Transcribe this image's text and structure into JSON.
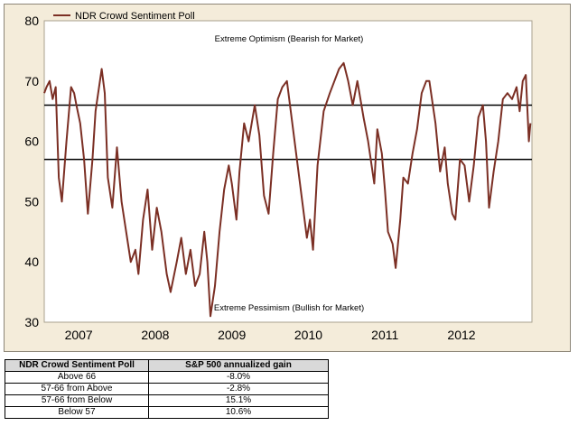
{
  "chart_data": {
    "type": "line",
    "title": "",
    "xlabel": "",
    "ylabel": "",
    "ylim": [
      30,
      80
    ],
    "yticks": [
      30,
      40,
      50,
      60,
      70,
      80
    ],
    "xlim": [
      2006.55,
      2012.92
    ],
    "xtick_labels": [
      {
        "label": "2007",
        "pos": 2007.0
      },
      {
        "label": "2008",
        "pos": 2008.0
      },
      {
        "label": "2009",
        "pos": 2009.0
      },
      {
        "label": "2010",
        "pos": 2010.0
      },
      {
        "label": "2011",
        "pos": 2011.0
      },
      {
        "label": "2012",
        "pos": 2012.0
      }
    ],
    "reference_lines": [
      66,
      57
    ],
    "annotations": [
      {
        "id": "optimism",
        "text": "Extreme Optimism (Bearish for Market)"
      },
      {
        "id": "pessimism",
        "text": "Extreme Pessimism (Bullish for Market)"
      }
    ],
    "legend": {
      "position": "top-left",
      "entries": [
        "NDR Crowd Sentiment Poll"
      ]
    },
    "series": [
      {
        "name": "NDR Crowd Sentiment Poll",
        "color": "#7b2f24",
        "x": [
          2006.55,
          2006.58,
          2006.62,
          2006.66,
          2006.7,
          2006.74,
          2006.78,
          2006.84,
          2006.9,
          2006.94,
          2006.97,
          2007.02,
          2007.07,
          2007.12,
          2007.18,
          2007.22,
          2007.3,
          2007.34,
          2007.38,
          2007.44,
          2007.5,
          2007.56,
          2007.62,
          2007.68,
          2007.74,
          2007.78,
          2007.84,
          2007.9,
          2007.96,
          2008.02,
          2008.08,
          2008.15,
          2008.2,
          2008.28,
          2008.34,
          2008.4,
          2008.46,
          2008.52,
          2008.58,
          2008.64,
          2008.68,
          2008.72,
          2008.78,
          2008.84,
          2008.9,
          2008.96,
          2009.0,
          2009.06,
          2009.1,
          2009.16,
          2009.22,
          2009.3,
          2009.36,
          2009.42,
          2009.48,
          2009.54,
          2009.6,
          2009.66,
          2009.72,
          2009.8,
          2009.86,
          2009.92,
          2009.98,
          2010.02,
          2010.06,
          2010.12,
          2010.2,
          2010.28,
          2010.34,
          2010.4,
          2010.46,
          2010.52,
          2010.58,
          2010.64,
          2010.72,
          2010.78,
          2010.86,
          2010.9,
          2010.96,
          2011.0,
          2011.04,
          2011.1,
          2011.14,
          2011.2,
          2011.24,
          2011.3,
          2011.36,
          2011.42,
          2011.48,
          2011.54,
          2011.58,
          2011.66,
          2011.72,
          2011.78,
          2011.82,
          2011.88,
          2011.92,
          2011.98,
          2012.04,
          2012.1,
          2012.16,
          2012.22,
          2012.28,
          2012.32,
          2012.36,
          2012.42,
          2012.48,
          2012.54,
          2012.6,
          2012.66,
          2012.72,
          2012.76,
          2012.8,
          2012.84,
          2012.88,
          2012.9
        ],
        "y": [
          68,
          69,
          70,
          67,
          69,
          54,
          50,
          60,
          69,
          68,
          66,
          63,
          57,
          48,
          57,
          65,
          72,
          68,
          54,
          49,
          59,
          50,
          45,
          40,
          42,
          38,
          47,
          52,
          42,
          49,
          45,
          38,
          35,
          40,
          44,
          38,
          42,
          36,
          38,
          45,
          40,
          31,
          36,
          45,
          52,
          56,
          53,
          47,
          55,
          63,
          60,
          66,
          61,
          51,
          48,
          58,
          67,
          69,
          70,
          62,
          56,
          50,
          44,
          47,
          42,
          56,
          65,
          68,
          70,
          72,
          73,
          70,
          66,
          70,
          64,
          60,
          53,
          62,
          58,
          52,
          45,
          43,
          39,
          47,
          54,
          53,
          58,
          62,
          68,
          70,
          70,
          63,
          55,
          59,
          53,
          48,
          47,
          57,
          56,
          50,
          56,
          64,
          66,
          60,
          49,
          55,
          60,
          67,
          68,
          67,
          69,
          65,
          70,
          71,
          60,
          63
        ]
      }
    ]
  },
  "table": {
    "headers": [
      "NDR Crowd Sentiment Poll",
      "S&P 500 annualized gain"
    ],
    "rows": [
      [
        "Above 66",
        "-8.0%"
      ],
      [
        "57-66 from Above",
        "-2.8%"
      ],
      [
        "57-66 from Below",
        "15.1%"
      ],
      [
        "Below  57",
        "10.6%"
      ]
    ]
  }
}
